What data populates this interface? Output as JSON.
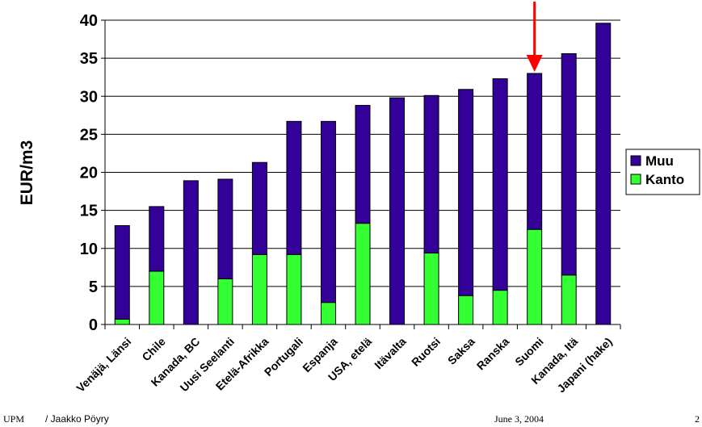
{
  "chart_data": {
    "type": "bar",
    "stacked": true,
    "ylabel": "EUR/m3",
    "ylim": [
      0,
      40
    ],
    "yticks": [
      0,
      5,
      10,
      15,
      20,
      25,
      30,
      35,
      40
    ],
    "grid": true,
    "legend_position": "right",
    "categories": [
      "Venäjä, Länsi",
      "Chile",
      "Kanada, BC",
      "Uusi Seelanti",
      "Etelä-Afrikka",
      "Portugali",
      "Espanja",
      "USA, etelä",
      "Itävalta",
      "Ruotsi",
      "Saksa",
      "Ranska",
      "Suomi",
      "Kanada, Itä",
      "Japani (hake)"
    ],
    "series": [
      {
        "name": "Kanto",
        "color": "#33ff33",
        "values": [
          0.7,
          7.0,
          0.0,
          6.0,
          9.2,
          9.2,
          2.9,
          13.3,
          0.0,
          9.4,
          3.8,
          4.5,
          12.5,
          6.5,
          0.0
        ]
      },
      {
        "name": "Muu",
        "color": "#330099",
        "values": [
          12.3,
          8.5,
          18.9,
          13.1,
          12.1,
          17.5,
          23.8,
          15.5,
          29.8,
          20.7,
          27.1,
          27.8,
          20.5,
          29.1,
          39.6
        ]
      }
    ],
    "highlight": {
      "category": "Suomi",
      "marker": "arrow",
      "color": "#ff0000"
    }
  },
  "footer": {
    "company": "UPM",
    "author": "/ Jaakko Pöyry",
    "date": "June 3, 2004",
    "page": "2"
  }
}
